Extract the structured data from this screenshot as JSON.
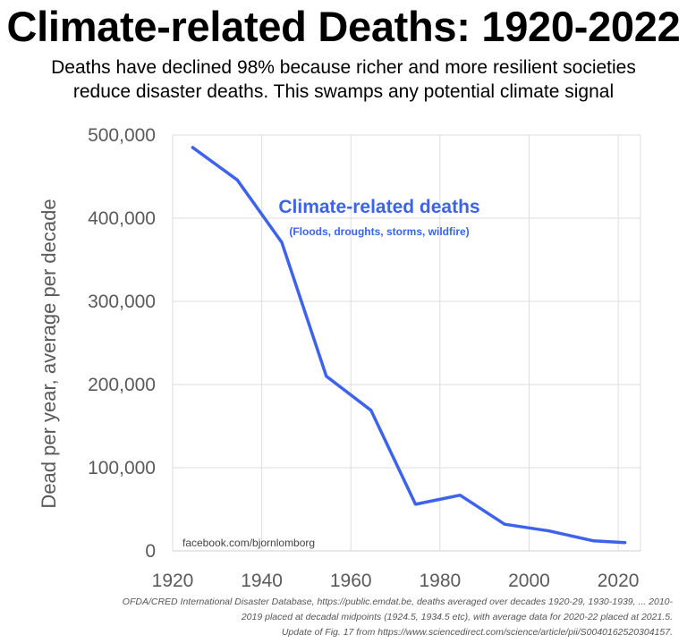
{
  "chart_data": {
    "type": "line",
    "title": "Climate-related Deaths: 1920-2022",
    "subtitle_lines": [
      "Deaths have declined 98% because richer and more resilient societies",
      "reduce disaster deaths. This swamps any potential climate signal"
    ],
    "ylabel": "Dead per year, average per decade",
    "xlabel": "",
    "xlim": [
      1920,
      2025
    ],
    "ylim": [
      0,
      500000
    ],
    "x_ticks": [
      1920,
      1940,
      1960,
      1980,
      2000,
      2020
    ],
    "x_tick_labels": [
      "1920",
      "1940",
      "1960",
      "1980",
      "2000",
      "2020"
    ],
    "y_ticks": [
      0,
      100000,
      200000,
      300000,
      400000,
      500000
    ],
    "y_tick_labels": [
      "0",
      "100,000",
      "200,000",
      "300,000",
      "400,000",
      "500,000"
    ],
    "grid": true,
    "series": [
      {
        "name": "Climate-related deaths",
        "color": "#3d63ec",
        "x": [
          1924.5,
          1934.5,
          1944.5,
          1954.5,
          1964.5,
          1974.5,
          1984.5,
          1994.5,
          2004.5,
          2014.5,
          2021.5
        ],
        "y": [
          485000,
          446000,
          371000,
          210000,
          169000,
          56000,
          67000,
          32000,
          24000,
          12000,
          10000
        ]
      }
    ],
    "annotation": {
      "title": "Climate-related deaths",
      "subtitle": "(Floods, droughts, storms, wildfire)",
      "color": "#3d63ec"
    },
    "watermark": "facebook.com/bjornlomborg",
    "source_lines": [
      "OFDA/CRED International Disaster Database, https://public.emdat.be, deaths averaged over decades 1920-29, 1930-1939, ... 2010-",
      "2019 placed at decadal midpoints (1924.5, 1934.5 etc), with average data for 2020-22 placed at 2021.5.",
      "Update of Fig. 17 from https://www.sciencedirect.com/science/article/pii/S0040162520304157."
    ]
  }
}
